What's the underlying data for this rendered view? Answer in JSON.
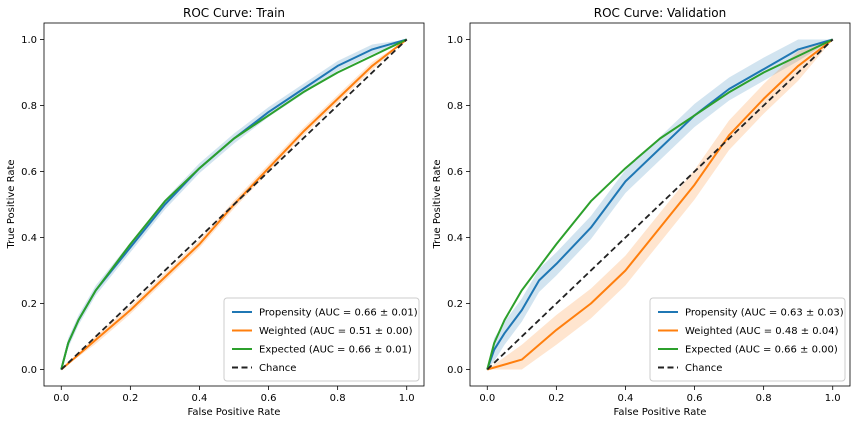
{
  "chart_data": [
    {
      "type": "line",
      "title": "ROC Curve: Train",
      "xlabel": "False Positive Rate",
      "ylabel": "True Positive Rate",
      "xlim": [
        -0.05,
        1.05
      ],
      "ylim": [
        -0.05,
        1.05
      ],
      "xticks": [
        "0.0",
        "0.2",
        "0.4",
        "0.6",
        "0.8",
        "1.0"
      ],
      "yticks": [
        "0.0",
        "0.2",
        "0.4",
        "0.6",
        "0.8",
        "1.0"
      ],
      "grid": false,
      "legend_position": "lower-right",
      "series": [
        {
          "name": "Propensity (AUC = 0.66 ± 0.01)",
          "color": "#1f77b4",
          "band": 0.015,
          "x": [
            0,
            0.02,
            0.05,
            0.1,
            0.2,
            0.3,
            0.4,
            0.5,
            0.6,
            0.7,
            0.8,
            0.9,
            1.0
          ],
          "y": [
            0,
            0.08,
            0.15,
            0.24,
            0.37,
            0.5,
            0.61,
            0.7,
            0.78,
            0.85,
            0.92,
            0.97,
            1.0
          ]
        },
        {
          "name": "Weighted (AUC = 0.51 ± 0.00)",
          "color": "#ff7f0e",
          "band": 0.012,
          "x": [
            0,
            0.1,
            0.2,
            0.3,
            0.4,
            0.5,
            0.6,
            0.7,
            0.8,
            0.9,
            1.0
          ],
          "y": [
            0,
            0.09,
            0.18,
            0.28,
            0.38,
            0.5,
            0.61,
            0.72,
            0.82,
            0.92,
            1.0
          ]
        },
        {
          "name": "Expected (AUC = 0.66 ± 0.01)",
          "color": "#2ca02c",
          "band": 0,
          "x": [
            0,
            0.02,
            0.05,
            0.1,
            0.2,
            0.3,
            0.4,
            0.5,
            0.6,
            0.7,
            0.8,
            0.9,
            1.0
          ],
          "y": [
            0,
            0.08,
            0.15,
            0.24,
            0.38,
            0.51,
            0.61,
            0.7,
            0.77,
            0.84,
            0.9,
            0.95,
            1.0
          ]
        },
        {
          "name": "Chance",
          "color": "#222222",
          "dashed": true,
          "band": 0,
          "x": [
            0,
            1
          ],
          "y": [
            0,
            1
          ]
        }
      ]
    },
    {
      "type": "line",
      "title": "ROC Curve: Validation",
      "xlabel": "False Positive Rate",
      "ylabel": "True Positive Rate",
      "xlim": [
        -0.05,
        1.05
      ],
      "ylim": [
        -0.05,
        1.05
      ],
      "xticks": [
        "0.0",
        "0.2",
        "0.4",
        "0.6",
        "0.8",
        "1.0"
      ],
      "yticks": [
        "0.0",
        "0.2",
        "0.4",
        "0.6",
        "0.8",
        "1.0"
      ],
      "grid": false,
      "legend_position": "lower-right",
      "series": [
        {
          "name": "Propensity (AUC = 0.63 ± 0.03)",
          "color": "#1f77b4",
          "band": 0.035,
          "x": [
            0,
            0.02,
            0.05,
            0.1,
            0.15,
            0.2,
            0.3,
            0.4,
            0.5,
            0.6,
            0.7,
            0.8,
            0.9,
            1.0
          ],
          "y": [
            0,
            0.06,
            0.11,
            0.18,
            0.27,
            0.32,
            0.43,
            0.57,
            0.67,
            0.77,
            0.85,
            0.91,
            0.97,
            1.0
          ]
        },
        {
          "name": "Weighted (AUC = 0.48 ± 0.04)",
          "color": "#ff7f0e",
          "band": 0.045,
          "x": [
            0,
            0.1,
            0.2,
            0.3,
            0.4,
            0.5,
            0.6,
            0.7,
            0.8,
            0.9,
            1.0
          ],
          "y": [
            0,
            0.03,
            0.12,
            0.2,
            0.3,
            0.43,
            0.56,
            0.71,
            0.82,
            0.92,
            1.0
          ]
        },
        {
          "name": "Expected (AUC = 0.66 ± 0.00)",
          "color": "#2ca02c",
          "band": 0,
          "x": [
            0,
            0.02,
            0.05,
            0.1,
            0.2,
            0.3,
            0.4,
            0.5,
            0.6,
            0.7,
            0.8,
            0.9,
            1.0
          ],
          "y": [
            0,
            0.08,
            0.15,
            0.24,
            0.38,
            0.51,
            0.61,
            0.7,
            0.77,
            0.84,
            0.9,
            0.95,
            1.0
          ]
        },
        {
          "name": "Chance",
          "color": "#222222",
          "dashed": true,
          "band": 0,
          "x": [
            0,
            1
          ],
          "y": [
            0,
            1
          ]
        }
      ]
    }
  ]
}
